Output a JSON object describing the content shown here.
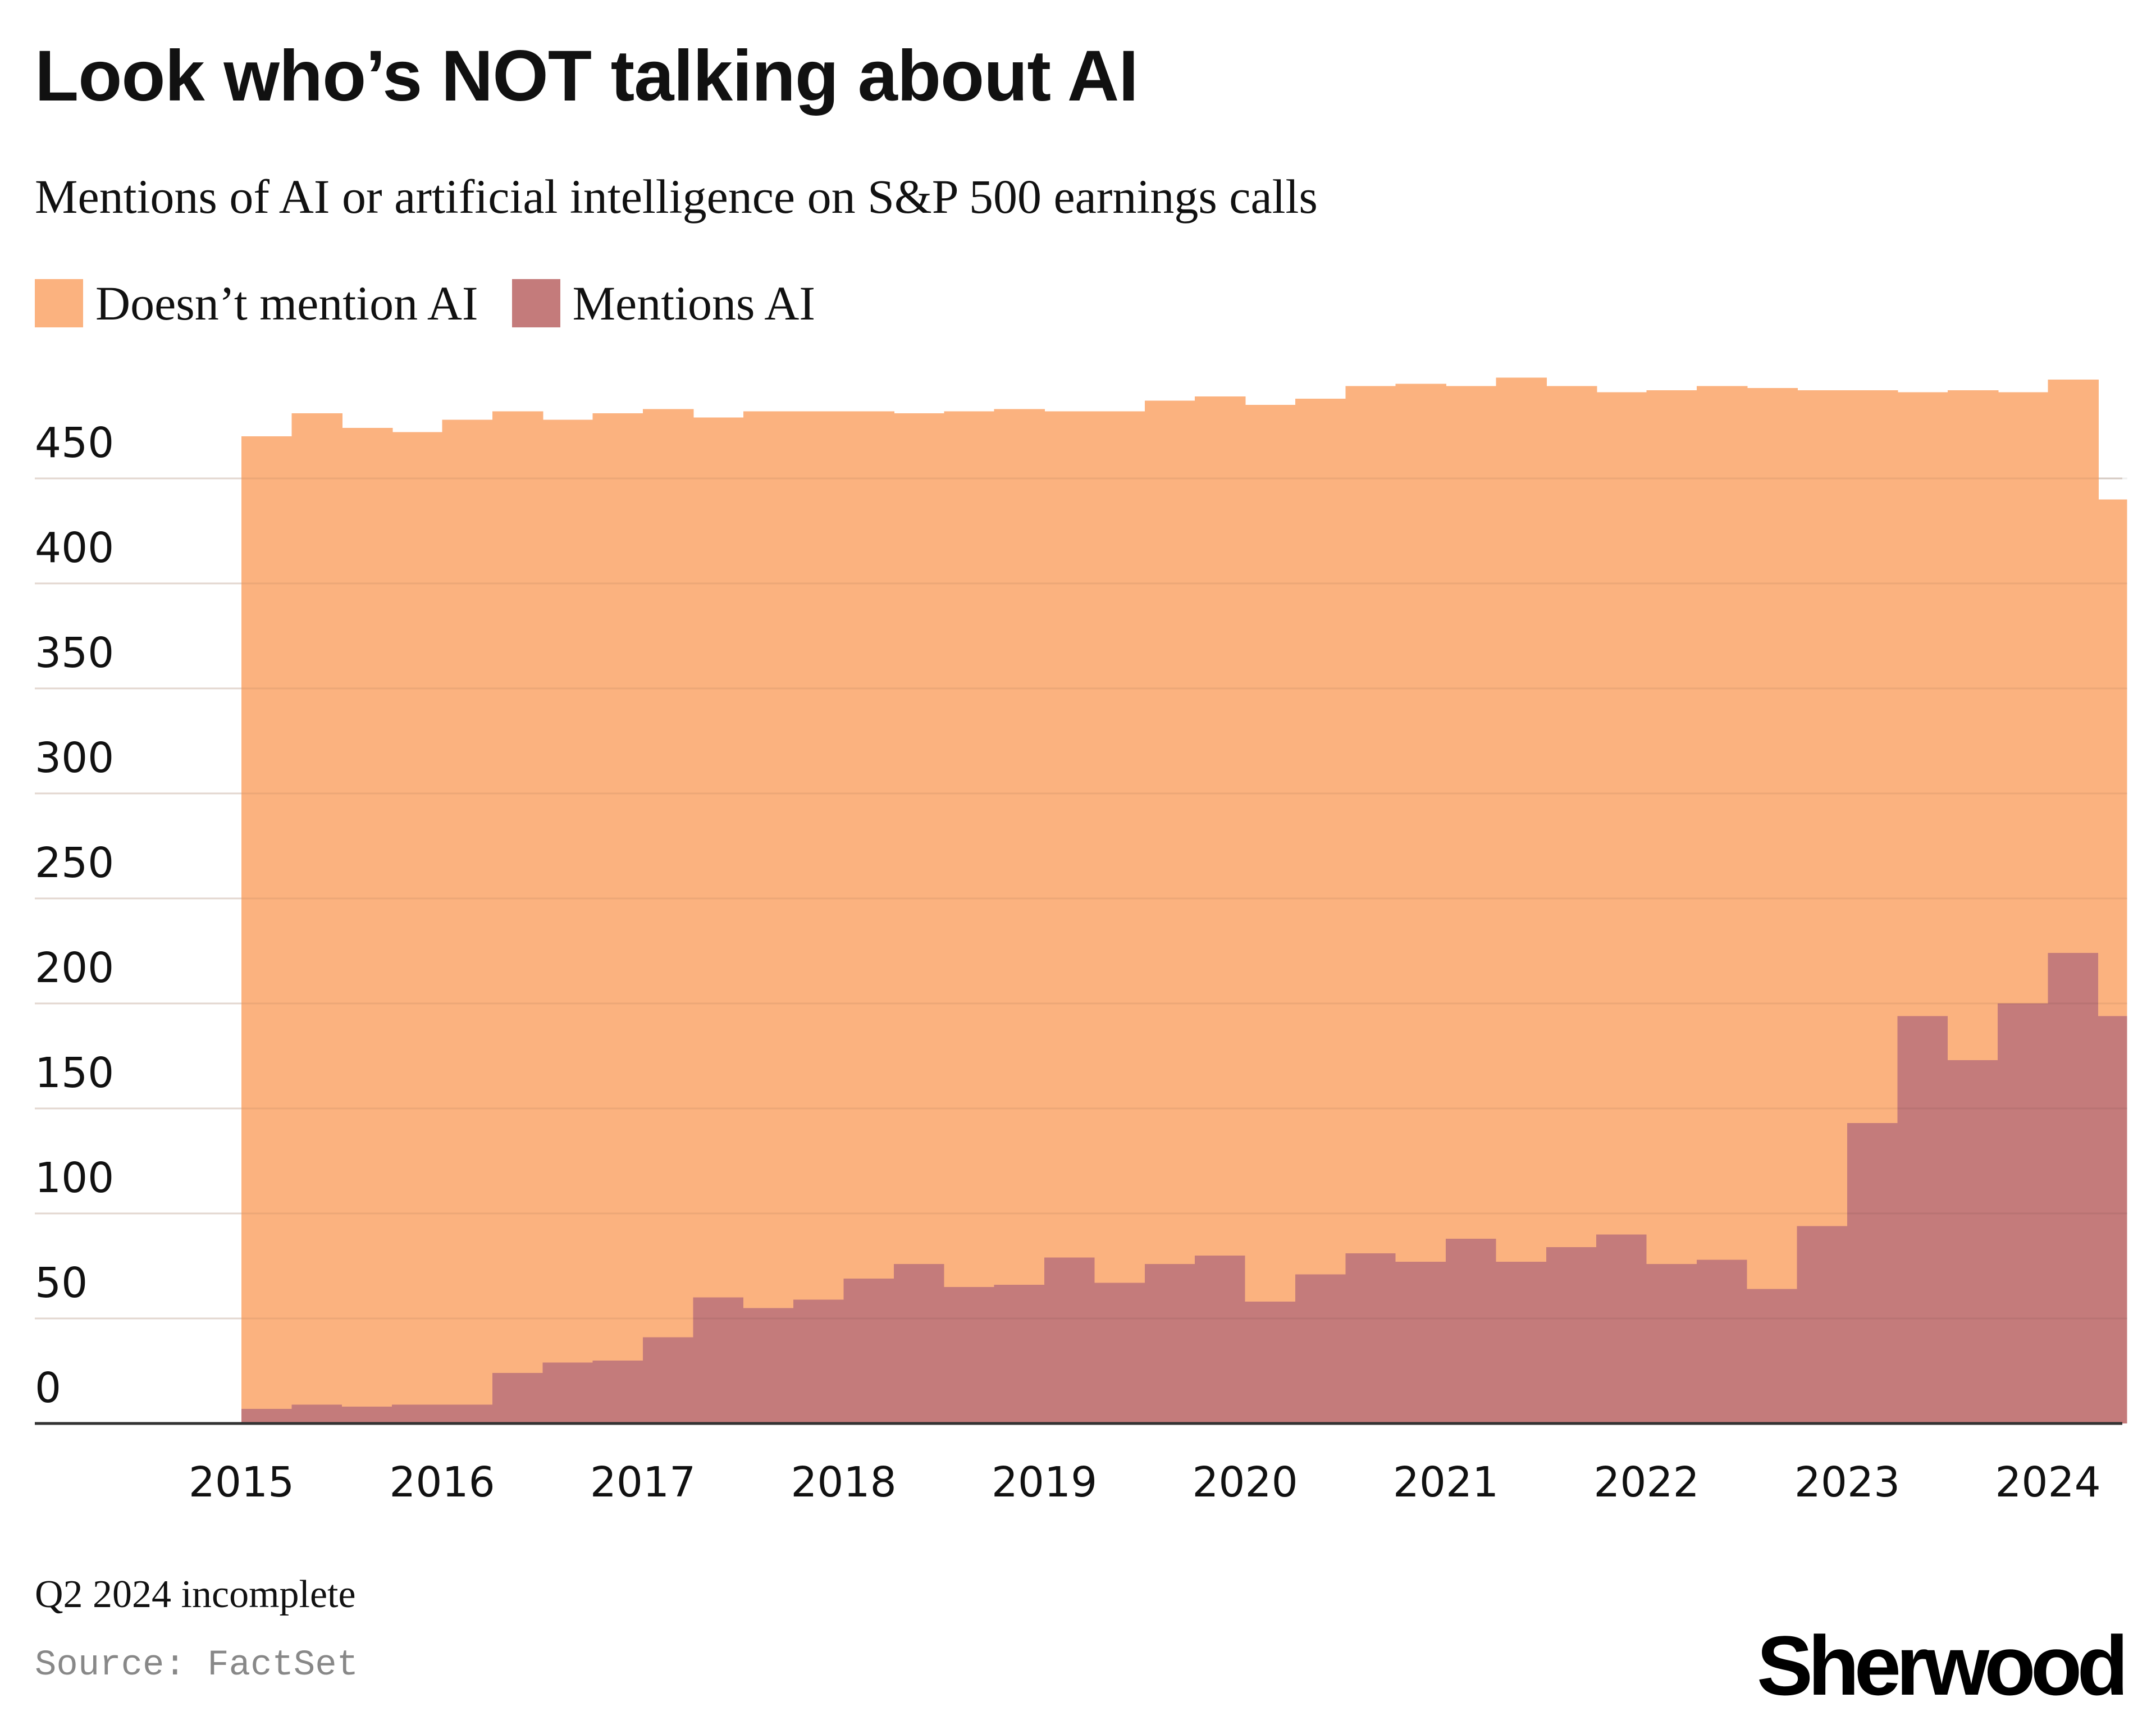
{
  "header": {
    "title": "Look who’s NOT talking about AI",
    "subtitle": "Mentions of AI or artificial intelligence on S&P 500 earnings calls"
  },
  "legend": {
    "items": [
      {
        "label": "Doesn’t mention AI",
        "color": "#fbb27f"
      },
      {
        "label": "Mentions AI",
        "color": "#c47b7b"
      }
    ]
  },
  "footer": {
    "note": "Q2 2024 incomplete",
    "source": "Source: FactSet",
    "brand": "Sherwood"
  },
  "colors": {
    "doesnt_mention": "#fbb27f",
    "mentions": "#c47b7b",
    "gridline": "#e2d6cf",
    "axis": "#333333"
  },
  "chart_data": {
    "type": "area",
    "stacked": true,
    "step": true,
    "title": "Look who’s NOT talking about AI",
    "subtitle": "Mentions of AI or artificial intelligence on S&P 500 earnings calls",
    "x_ticks": [
      "2015",
      "2016",
      "2017",
      "2018",
      "2019",
      "2020",
      "2021",
      "2022",
      "2023",
      "2024"
    ],
    "x": [
      "2015 Q1",
      "2015 Q2",
      "2015 Q3",
      "2015 Q4",
      "2016 Q1",
      "2016 Q2",
      "2016 Q3",
      "2016 Q4",
      "2017 Q1",
      "2017 Q2",
      "2017 Q3",
      "2017 Q4",
      "2018 Q1",
      "2018 Q2",
      "2018 Q3",
      "2018 Q4",
      "2019 Q1",
      "2019 Q2",
      "2019 Q3",
      "2019 Q4",
      "2020 Q1",
      "2020 Q2",
      "2020 Q3",
      "2020 Q4",
      "2021 Q1",
      "2021 Q2",
      "2021 Q3",
      "2021 Q4",
      "2022 Q1",
      "2022 Q2",
      "2022 Q3",
      "2022 Q4",
      "2023 Q1",
      "2023 Q2",
      "2023 Q3",
      "2023 Q4",
      "2024 Q1",
      "2024 Q2"
    ],
    "ylim": [
      0,
      500
    ],
    "y_ticks": [
      0,
      50,
      100,
      150,
      200,
      250,
      300,
      350,
      400,
      450
    ],
    "grid": true,
    "legend_position": "top-left",
    "series": [
      {
        "name": "Mentions AI",
        "values": [
          7,
          9,
          8,
          9,
          9,
          24,
          29,
          30,
          41,
          60,
          55,
          59,
          69,
          76,
          65,
          66,
          79,
          67,
          76,
          80,
          58,
          71,
          81,
          77,
          88,
          77,
          84,
          90,
          76,
          78,
          64,
          94,
          143,
          194,
          173,
          200,
          224,
          194
        ]
      },
      {
        "name": "Doesn’t mention AI",
        "values": [
          463,
          472,
          466,
          463,
          469,
          458,
          449,
          451,
          442,
          419,
          427,
          423,
          413,
          405,
          417,
          417,
          403,
          415,
          411,
          409,
          427,
          417,
          413,
          418,
          406,
          421,
          410,
          401,
          416,
          416,
          429,
          398,
          349,
          297,
          319,
          291,
          273,
          246
        ]
      }
    ],
    "totals": [
      470,
      481,
      474,
      472,
      478,
      482,
      478,
      481,
      483,
      479,
      482,
      482,
      482,
      481,
      482,
      483,
      482,
      482,
      487,
      489,
      485,
      488,
      494,
      495,
      494,
      498,
      494,
      491,
      492,
      494,
      493,
      492,
      492,
      491,
      492,
      491,
      497,
      440
    ]
  }
}
